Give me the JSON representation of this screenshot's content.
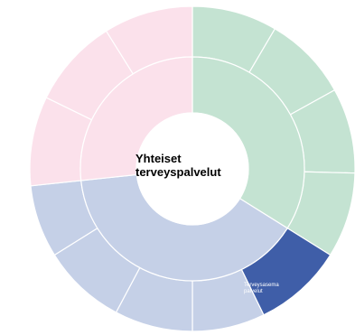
{
  "center": {
    "title_line1": "Yhteiset",
    "title_line2": "terveyspalvelut",
    "color": "#ffffff"
  },
  "colors": {
    "green": "#c4e3d2",
    "pink": "#fbe1eb",
    "blue": "#c5d0e7",
    "highlight": "#3f5ea8",
    "stroke": "#ffffff"
  },
  "groups": [
    {
      "name": "green",
      "inner_color": "#c4e3d2",
      "outer_segments": 4
    },
    {
      "name": "blue",
      "inner_color": "#c5d0e7",
      "outer_segments": 5
    },
    {
      "name": "pink",
      "inner_color": "#fbe1eb",
      "outer_segments": 3
    }
  ],
  "highlighted_segment": {
    "label_line1": "Terveysasema",
    "label_line2": "palvelut",
    "color": "#3f5ea8"
  }
}
